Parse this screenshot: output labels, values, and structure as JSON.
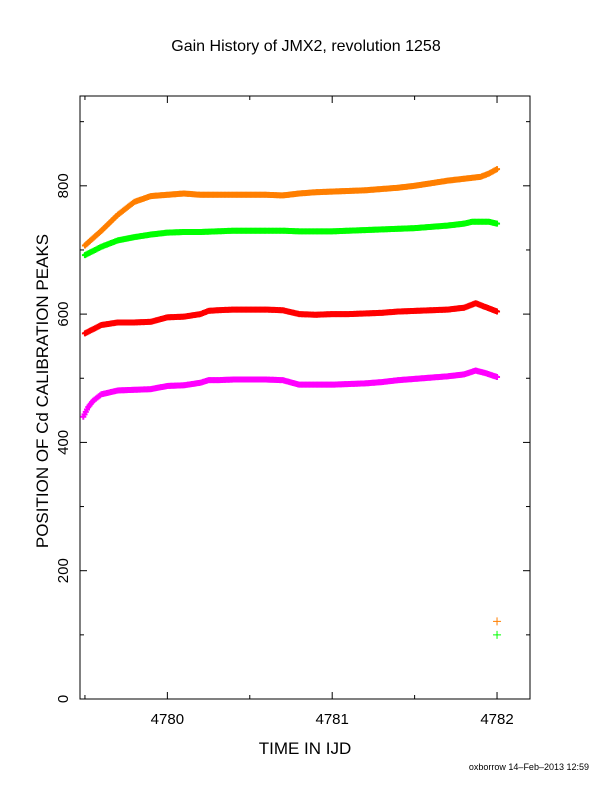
{
  "chart_data": {
    "type": "scatter",
    "title": "Gain History of JMX2, revolution 1258",
    "xlabel": "TIME IN IJD",
    "ylabel": "POSITION OF Cd CALIBRATION PEAKS",
    "xlim": [
      4779.47,
      4782.2
    ],
    "ylim": [
      0,
      940
    ],
    "xticks": [
      4780,
      4781,
      4782
    ],
    "yticks": [
      0,
      200,
      400,
      600,
      800
    ],
    "grid": false,
    "series": [
      {
        "color": "#ff7f00",
        "marker": "+",
        "points": [
          [
            4779.5,
            707
          ],
          [
            4779.6,
            730
          ],
          [
            4779.7,
            755
          ],
          [
            4779.8,
            775
          ],
          [
            4779.9,
            784
          ],
          [
            4780.0,
            786
          ],
          [
            4780.1,
            788
          ],
          [
            4780.2,
            786
          ],
          [
            4780.3,
            786
          ],
          [
            4780.4,
            786
          ],
          [
            4780.5,
            786
          ],
          [
            4780.6,
            786
          ],
          [
            4780.7,
            785
          ],
          [
            4780.8,
            788
          ],
          [
            4780.9,
            790
          ],
          [
            4781.0,
            791
          ],
          [
            4781.1,
            792
          ],
          [
            4781.2,
            793
          ],
          [
            4781.3,
            795
          ],
          [
            4781.4,
            797
          ],
          [
            4781.5,
            800
          ],
          [
            4781.6,
            804
          ],
          [
            4781.7,
            808
          ],
          [
            4781.8,
            811
          ],
          [
            4781.9,
            814
          ],
          [
            4781.95,
            819
          ],
          [
            4782.0,
            826
          ]
        ],
        "outliers": [
          [
            4782.0,
            121
          ]
        ]
      },
      {
        "color": "#00ff00",
        "marker": "+",
        "points": [
          [
            4779.5,
            692
          ],
          [
            4779.6,
            705
          ],
          [
            4779.7,
            715
          ],
          [
            4779.8,
            720
          ],
          [
            4779.9,
            724
          ],
          [
            4780.0,
            727
          ],
          [
            4780.1,
            728
          ],
          [
            4780.2,
            728
          ],
          [
            4780.3,
            729
          ],
          [
            4780.4,
            730
          ],
          [
            4780.5,
            730
          ],
          [
            4780.6,
            730
          ],
          [
            4780.7,
            730
          ],
          [
            4780.8,
            729
          ],
          [
            4780.9,
            729
          ],
          [
            4781.0,
            729
          ],
          [
            4781.1,
            730
          ],
          [
            4781.2,
            731
          ],
          [
            4781.3,
            732
          ],
          [
            4781.4,
            733
          ],
          [
            4781.5,
            734
          ],
          [
            4781.6,
            736
          ],
          [
            4781.7,
            738
          ],
          [
            4781.8,
            741
          ],
          [
            4781.85,
            744
          ],
          [
            4781.95,
            744
          ],
          [
            4782.0,
            741
          ]
        ],
        "outliers": [
          [
            4782.0,
            100
          ]
        ]
      },
      {
        "color": "#ff0000",
        "marker": "+",
        "points": [
          [
            4779.5,
            570
          ],
          [
            4779.6,
            583
          ],
          [
            4779.7,
            587
          ],
          [
            4779.8,
            587
          ],
          [
            4779.9,
            588
          ],
          [
            4780.0,
            595
          ],
          [
            4780.1,
            596
          ],
          [
            4780.2,
            600
          ],
          [
            4780.25,
            605
          ],
          [
            4780.3,
            606
          ],
          [
            4780.4,
            607
          ],
          [
            4780.5,
            607
          ],
          [
            4780.6,
            607
          ],
          [
            4780.7,
            606
          ],
          [
            4780.8,
            600
          ],
          [
            4780.9,
            599
          ],
          [
            4781.0,
            600
          ],
          [
            4781.1,
            600
          ],
          [
            4781.2,
            601
          ],
          [
            4781.3,
            602
          ],
          [
            4781.4,
            604
          ],
          [
            4781.5,
            605
          ],
          [
            4781.6,
            606
          ],
          [
            4781.7,
            607
          ],
          [
            4781.8,
            610
          ],
          [
            4781.87,
            617
          ],
          [
            4781.93,
            611
          ],
          [
            4782.0,
            604
          ]
        ]
      },
      {
        "color": "#ff00ff",
        "marker": "+",
        "points": [
          [
            4779.49,
            440
          ],
          [
            4779.52,
            455
          ],
          [
            4779.55,
            465
          ],
          [
            4779.6,
            475
          ],
          [
            4779.7,
            481
          ],
          [
            4779.8,
            482
          ],
          [
            4779.9,
            483
          ],
          [
            4780.0,
            488
          ],
          [
            4780.1,
            489
          ],
          [
            4780.2,
            493
          ],
          [
            4780.25,
            497
          ],
          [
            4780.3,
            497
          ],
          [
            4780.4,
            498
          ],
          [
            4780.5,
            498
          ],
          [
            4780.6,
            498
          ],
          [
            4780.7,
            497
          ],
          [
            4780.8,
            490
          ],
          [
            4780.9,
            490
          ],
          [
            4781.0,
            490
          ],
          [
            4781.1,
            491
          ],
          [
            4781.2,
            492
          ],
          [
            4781.3,
            494
          ],
          [
            4781.4,
            497
          ],
          [
            4781.5,
            499
          ],
          [
            4781.6,
            501
          ],
          [
            4781.7,
            503
          ],
          [
            4781.8,
            506
          ],
          [
            4781.87,
            512
          ],
          [
            4781.93,
            508
          ],
          [
            4782.0,
            502
          ]
        ]
      }
    ]
  },
  "footer": "oxborrow 14–Feb–2013 12:59"
}
